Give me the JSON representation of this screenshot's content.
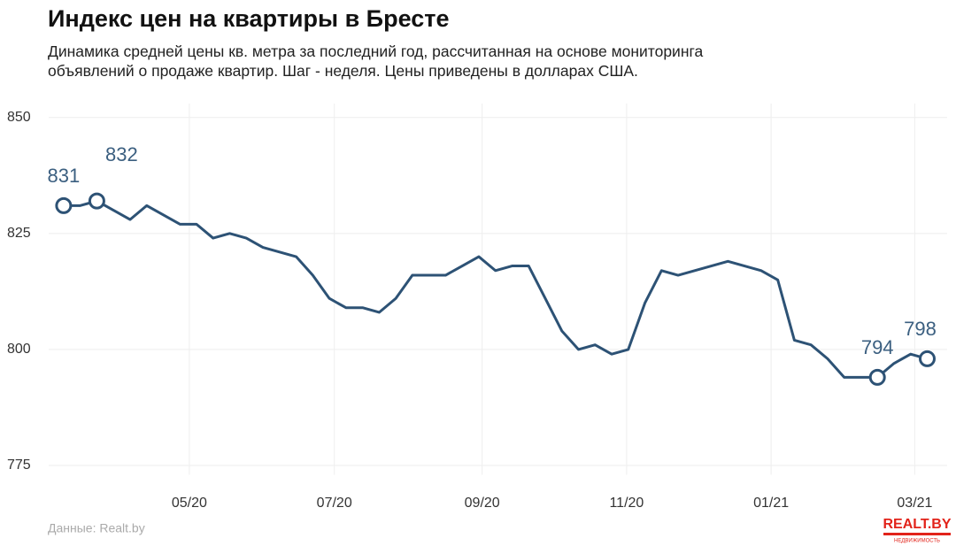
{
  "chart_data": {
    "type": "line",
    "title": "Индекс цен на квартиры в Бресте",
    "subtitle": [
      "Динамика средней цены кв. метра за последний год, рассчитанная на основе мониторинга",
      "объявлений о продаже квартир. Шаг - неделя. Цены приведены в долларах США."
    ],
    "source": "Данные: Realt.by",
    "logo": {
      "text": "REALT.BY",
      "tagline": "НЕДВИЖИМОСТЬ"
    },
    "x": [
      0,
      1,
      2,
      3,
      4,
      5,
      6,
      7,
      8,
      9,
      10,
      11,
      12,
      13,
      14,
      15,
      16,
      17,
      18,
      19,
      20,
      21,
      22,
      23,
      24,
      25,
      26,
      27,
      28,
      29,
      30,
      31,
      32,
      33,
      34,
      35,
      36,
      37,
      38,
      39,
      40,
      41,
      42,
      43,
      44,
      45,
      46,
      47,
      48,
      49,
      50,
      51,
      52
    ],
    "series": [
      {
        "color": "#2d5275",
        "values": [
          831,
          831,
          832,
          830,
          828,
          831,
          829,
          827,
          827,
          824,
          825,
          824,
          822,
          821,
          820,
          816,
          811,
          809,
          809,
          808,
          811,
          816,
          816,
          816,
          818,
          820,
          817,
          818,
          818,
          811,
          804,
          800,
          801,
          799,
          800,
          810,
          817,
          816,
          817,
          818,
          819,
          818,
          817,
          815,
          802,
          801,
          798,
          794,
          794,
          794,
          797,
          799,
          798
        ]
      }
    ],
    "annotated_points": [
      0,
      2,
      49,
      52
    ],
    "xlim": [
      -0.9,
      53.2
    ],
    "xticks": [
      {
        "value": 7.57,
        "label": "05/20"
      },
      {
        "value": 16.3,
        "label": "07/20"
      },
      {
        "value": 25.2,
        "label": "09/20"
      },
      {
        "value": 33.9,
        "label": "11/20"
      },
      {
        "value": 42.6,
        "label": "01/21"
      },
      {
        "value": 51.25,
        "label": "03/21"
      }
    ],
    "ylim": [
      773,
      853
    ],
    "yticks": [
      775,
      800,
      825,
      850
    ],
    "grid": true
  }
}
